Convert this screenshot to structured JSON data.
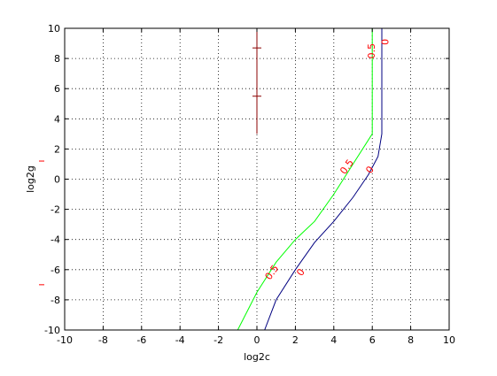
{
  "chart_data": {
    "type": "contour",
    "title": "",
    "xlabel": "log2c",
    "ylabel": "log2g",
    "xlim": [
      -10,
      10
    ],
    "ylim": [
      -10,
      10
    ],
    "xticks": [
      -10,
      -8,
      -6,
      -4,
      -2,
      0,
      2,
      4,
      6,
      8,
      10
    ],
    "yticks": [
      -10,
      -8,
      -6,
      -4,
      -2,
      0,
      2,
      4,
      6,
      8,
      10
    ],
    "grid": true,
    "series": [
      {
        "name": "0.5",
        "color": "#00ff00",
        "points": [
          [
            -1.0,
            -10.0
          ],
          [
            0.0,
            -7.5
          ],
          [
            1.0,
            -5.5
          ],
          [
            2.0,
            -4.0
          ],
          [
            3.0,
            -2.8
          ],
          [
            4.0,
            -1.0
          ],
          [
            5.0,
            1.0
          ],
          [
            6.0,
            3.0
          ],
          [
            6.0,
            10.0
          ]
        ]
      },
      {
        "name": "0",
        "color": "#000080",
        "points": [
          [
            0.4,
            -10.0
          ],
          [
            1.0,
            -8.0
          ],
          [
            2.0,
            -6.0
          ],
          [
            3.0,
            -4.2
          ],
          [
            4.0,
            -2.8
          ],
          [
            5.0,
            -1.2
          ],
          [
            5.8,
            0.3
          ],
          [
            6.3,
            1.5
          ],
          [
            6.5,
            3.0
          ],
          [
            6.5,
            10.0
          ]
        ]
      },
      {
        "name": "",
        "color": "#8b0000",
        "points": [
          [
            0.0,
            3.0
          ],
          [
            0.0,
            10.0
          ]
        ]
      }
    ],
    "markers": [
      {
        "x": 0.0,
        "y": 8.7,
        "color": "#8b0000"
      },
      {
        "x": 0.0,
        "y": 5.5,
        "color": "#8b0000"
      }
    ],
    "contour_labels": [
      {
        "text": "0.5",
        "x": 4.7,
        "y": 0.8,
        "rotate": -55
      },
      {
        "text": "0",
        "x": 5.9,
        "y": 0.6,
        "rotate": -55
      },
      {
        "text": "0.5",
        "x": 0.8,
        "y": -6.2,
        "rotate": -55
      },
      {
        "text": "0",
        "x": 2.3,
        "y": -6.2,
        "rotate": -55
      },
      {
        "text": "0.5",
        "x": 6.0,
        "y": 8.5,
        "rotate": -90
      },
      {
        "text": "0",
        "x": 6.7,
        "y": 9.1,
        "rotate": -90
      }
    ],
    "edge_ticks": [
      {
        "y": 1.2,
        "color": "#ff0000"
      },
      {
        "y": -7.0,
        "color": "#ff0000"
      }
    ]
  }
}
